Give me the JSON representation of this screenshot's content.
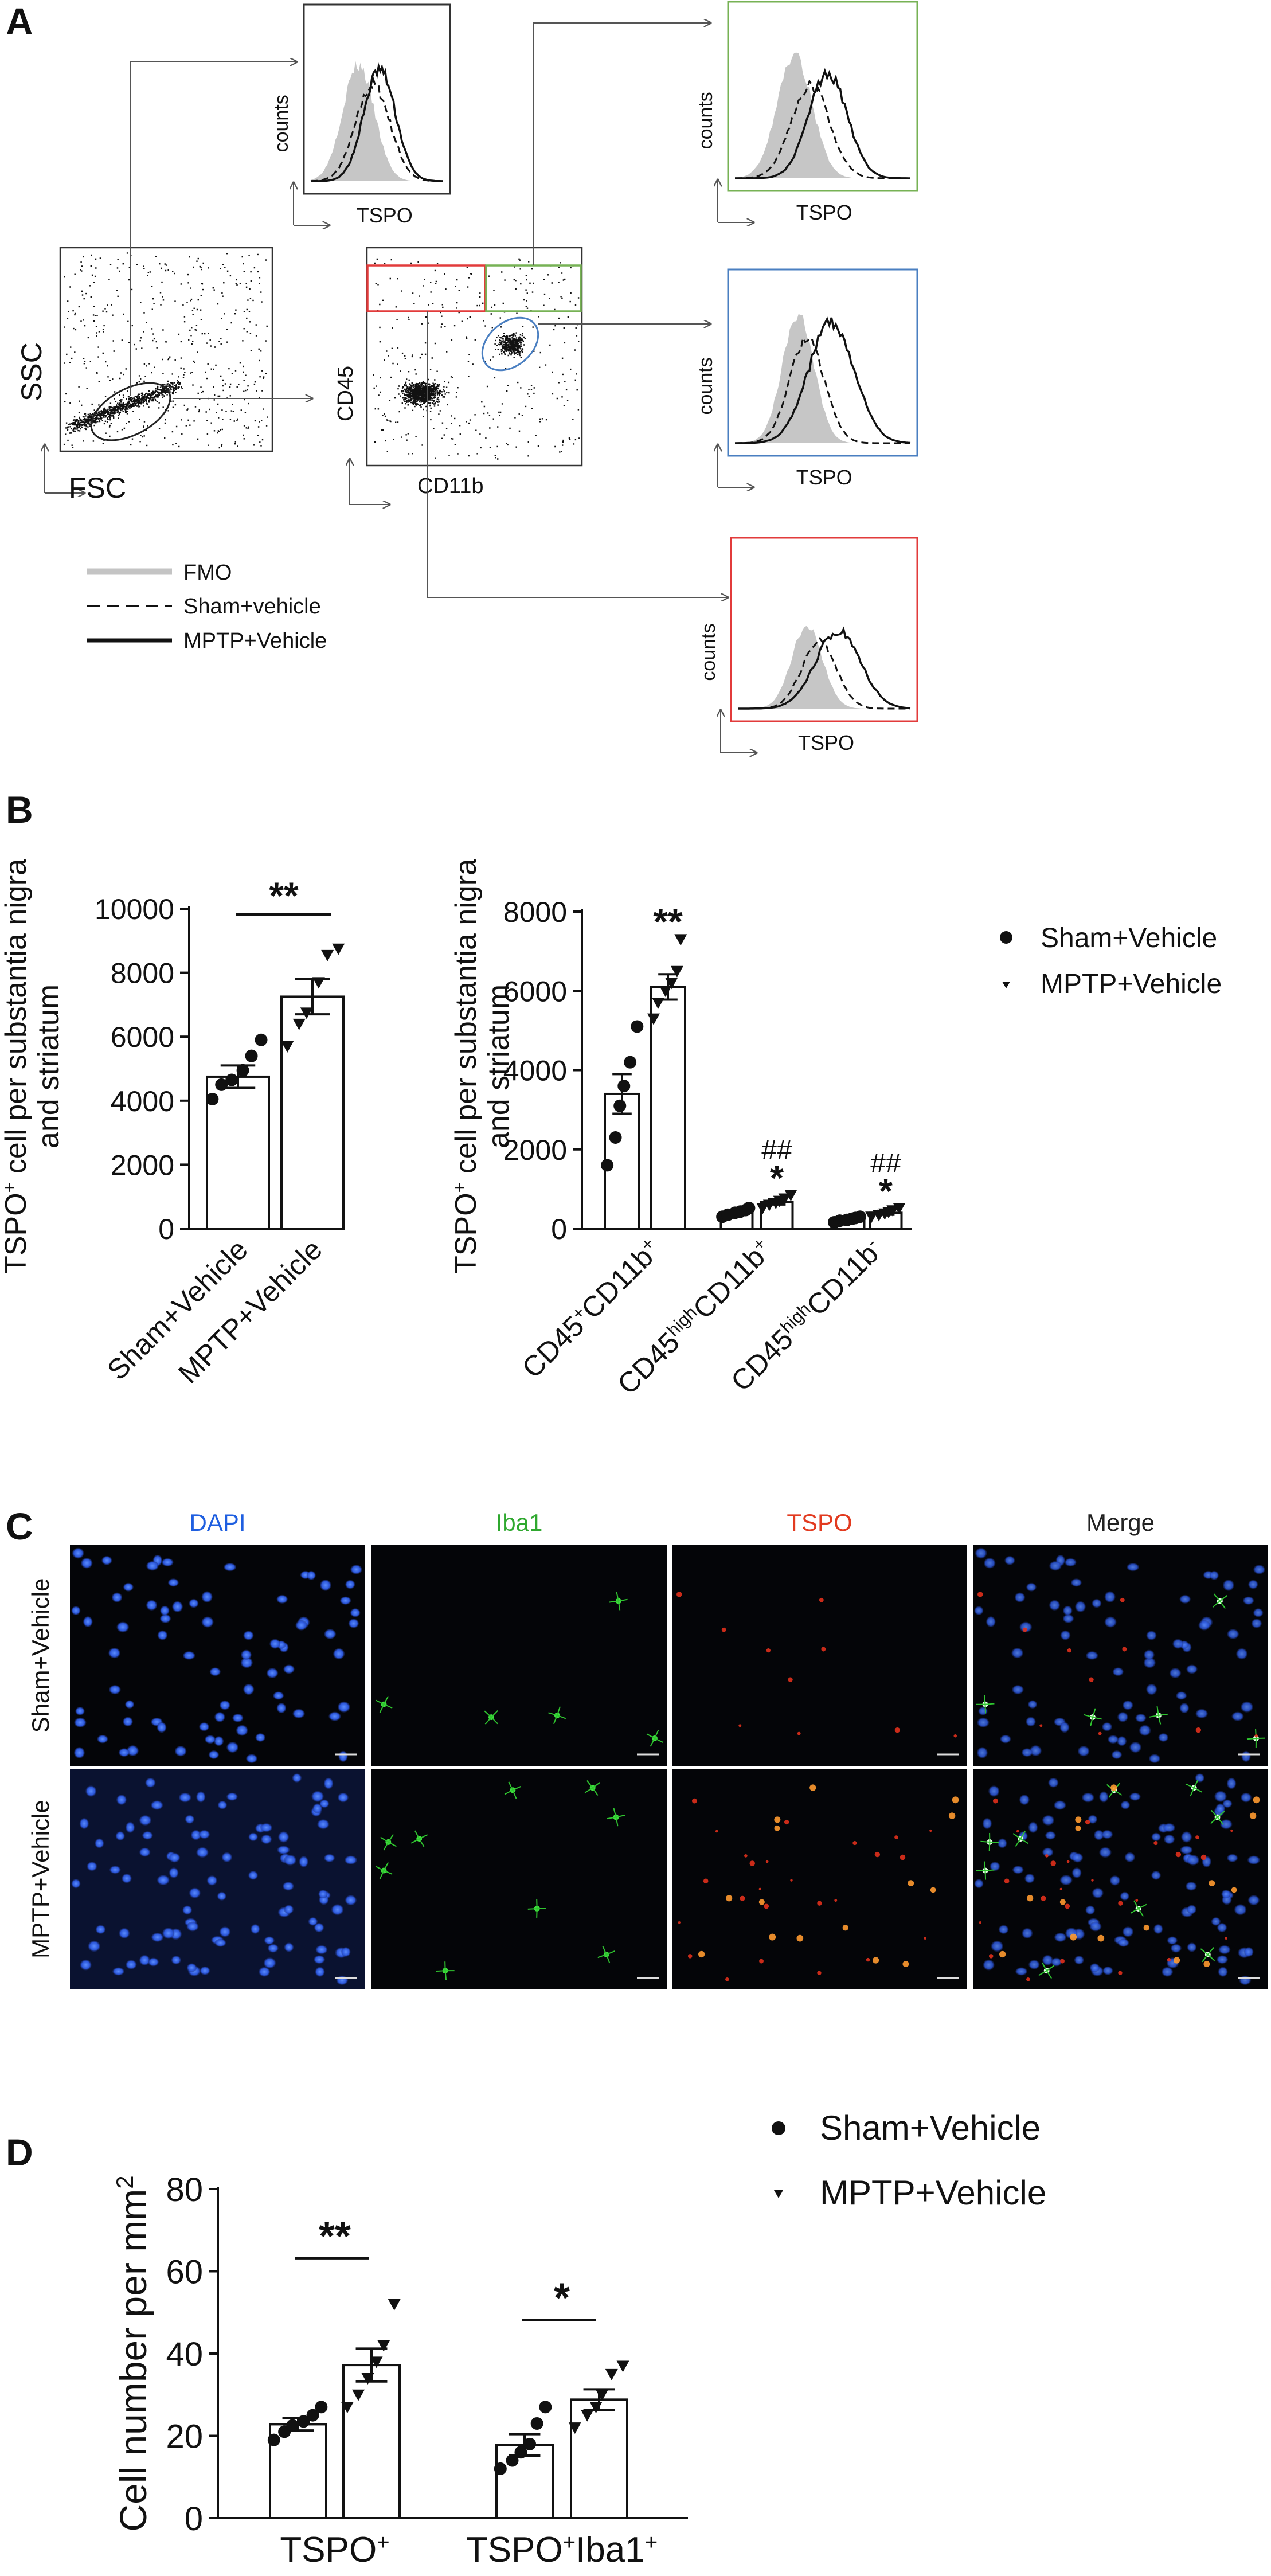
{
  "panels": {
    "A": {
      "label": "A",
      "scatter1": {
        "x_label": "FSC",
        "y_label": "SSC"
      },
      "scatter2": {
        "x_label": "CD11b",
        "y_label": "CD45"
      },
      "histograms": [
        {
          "x_label": "TSPO",
          "y_label": "counts",
          "frame_color": "#333333"
        },
        {
          "x_label": "TSPO",
          "y_label": "counts",
          "frame_color": "#77b255"
        },
        {
          "x_label": "TSPO",
          "y_label": "counts",
          "frame_color": "#4a7fc1"
        },
        {
          "x_label": "TSPO",
          "y_label": "counts",
          "frame_color": "#e23b3b"
        }
      ],
      "legend": [
        {
          "label": "FMO",
          "style": "gray"
        },
        {
          "label": "Sham+vehicle",
          "style": "dashed"
        },
        {
          "label": "MPTP+Vehicle",
          "style": "solid"
        }
      ]
    },
    "B": {
      "label": "B"
    },
    "C": {
      "label": "C",
      "columns": [
        {
          "label": "DAPI",
          "color": "#1f5fe0"
        },
        {
          "label": "Iba1",
          "color": "#2fa82f"
        },
        {
          "label": "TSPO",
          "color": "#e23b20"
        },
        {
          "label": "Merge",
          "color": "#222222"
        }
      ],
      "rows": [
        "Sham+Vehicle",
        "MPTP+Vehicle"
      ]
    },
    "D": {
      "label": "D"
    }
  },
  "chart_data": [
    {
      "type": "bar",
      "panel": "B-left",
      "ylabel_main": "TSPO",
      "ylabel_sup": "+",
      "ylabel_rest": " cell  per substantia nigra",
      "ylabel_line2": "and striatum",
      "ylim": [
        0,
        10000
      ],
      "yticks": [
        0,
        2000,
        4000,
        6000,
        8000,
        10000
      ],
      "categories": [
        "Sham+Vehicle",
        "MPTP+Vehicle"
      ],
      "values": [
        4750,
        7250
      ],
      "errors": [
        350,
        550
      ],
      "points": [
        [
          4050,
          4500,
          4650,
          4950,
          5400,
          5900
        ],
        [
          5700,
          6400,
          6750,
          7700,
          8550,
          8750
        ]
      ],
      "sig_line": "**"
    },
    {
      "type": "bar",
      "panel": "B-right",
      "ylabel_main": "TSPO",
      "ylabel_sup": "+",
      "ylabel_rest": " cell  per substantia nigra",
      "ylabel_line2": "and striatum",
      "ylim": [
        0,
        8000
      ],
      "yticks": [
        0,
        2000,
        4000,
        6000,
        8000
      ],
      "groups": [
        {
          "label_parts": [
            [
              "CD45",
              ""
            ],
            [
              "+",
              "sup"
            ],
            [
              "CD11b",
              ""
            ],
            [
              "+",
              "sup"
            ]
          ],
          "values": [
            3400,
            6100
          ],
          "errors": [
            500,
            320
          ],
          "points": [
            [
              1600,
              2300,
              3100,
              3600,
              4200,
              5100
            ],
            [
              5300,
              5700,
              6000,
              6200,
              6500,
              7300
            ]
          ],
          "sig": [
            "",
            "**"
          ]
        },
        {
          "label_parts": [
            [
              "CD45",
              ""
            ],
            [
              "high",
              "sup"
            ],
            [
              "CD11b",
              ""
            ],
            [
              "+",
              "sup"
            ]
          ],
          "values": [
            420,
            680
          ],
          "errors": [
            50,
            70
          ],
          "points": [
            [
              300,
              350,
              400,
              430,
              470,
              520
            ],
            [
              520,
              600,
              650,
              700,
              760,
              850
            ]
          ],
          "sig": [
            "",
            "*"
          ],
          "sig2": "##"
        },
        {
          "label_parts": [
            [
              "CD45",
              ""
            ],
            [
              "high",
              "sup"
            ],
            [
              "CD11b",
              ""
            ],
            [
              "-",
              "sup"
            ]
          ],
          "values": [
            230,
            400
          ],
          "errors": [
            30,
            50
          ],
          "points": [
            [
              160,
              200,
              220,
              250,
              270,
              300
            ],
            [
              300,
              340,
              380,
              420,
              460,
              520
            ]
          ],
          "sig": [
            "",
            "*"
          ],
          "sig2": "##"
        }
      ],
      "legend": [
        "Sham+Vehicle",
        "MPTP+Vehicle"
      ]
    },
    {
      "type": "bar",
      "panel": "D",
      "ylabel_main": "Cell number per mm",
      "ylabel_sup": "2",
      "ylim": [
        0,
        80
      ],
      "yticks": [
        0,
        20,
        40,
        60,
        80
      ],
      "groups": [
        {
          "label_parts": [
            [
              "TSPO",
              ""
            ],
            [
              "+",
              "sup"
            ]
          ],
          "values": [
            22.8,
            37.2
          ],
          "errors": [
            1.5,
            4.0
          ],
          "points": [
            [
              19,
              21,
              22.5,
              23.5,
              25,
              27
            ],
            [
              27,
              30,
              34,
              38,
              42,
              52
            ]
          ],
          "sig_line": "**"
        },
        {
          "label_parts": [
            [
              "TSPO",
              ""
            ],
            [
              "+",
              "sup"
            ],
            [
              "Iba1",
              ""
            ],
            [
              "+",
              "sup"
            ]
          ],
          "values": [
            17.8,
            28.8
          ],
          "errors": [
            2.6,
            2.5
          ],
          "points": [
            [
              12,
              14,
              16,
              18,
              23,
              27
            ],
            [
              22,
              25,
              27,
              30,
              35,
              37
            ]
          ],
          "sig_line": "*"
        }
      ],
      "legend": [
        "Sham+Vehicle",
        "MPTP+Vehicle"
      ]
    }
  ]
}
